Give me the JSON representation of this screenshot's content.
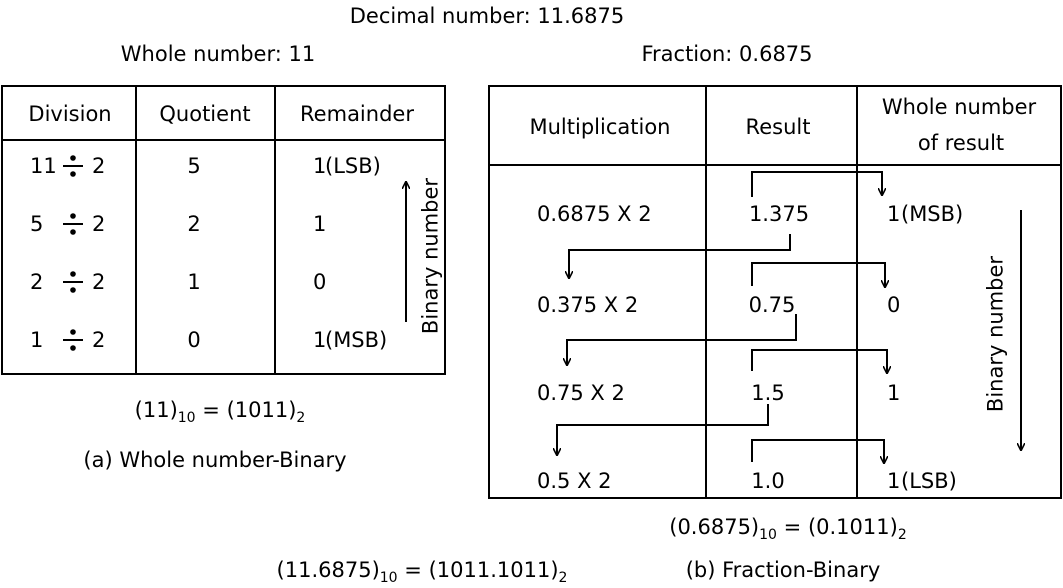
{
  "header": {
    "decimal_label": "Decimal number: 11.6875",
    "whole_label": "Whole number: 11",
    "fraction_label": "Fraction: 0.6875"
  },
  "table_a": {
    "headers": [
      "Division",
      "Quotient",
      "Remainder"
    ],
    "rows": [
      {
        "a": "11",
        "b": "2",
        "quotient": "5",
        "remainder": "1",
        "tag": "(LSB)"
      },
      {
        "a": "5",
        "b": "2",
        "quotient": "2",
        "remainder": "1",
        "tag": ""
      },
      {
        "a": "2",
        "b": "2",
        "quotient": "1",
        "remainder": "0",
        "tag": ""
      },
      {
        "a": "1",
        "b": "2",
        "quotient": "0",
        "remainder": "1",
        "tag": "(MSB)"
      }
    ],
    "side_label": "Binary number",
    "result": {
      "lhs": "(11)",
      "lhs_base": "10",
      "eq": "=",
      "rhs": "(1011)",
      "rhs_base": "2"
    },
    "caption": "(a) Whole number-Binary"
  },
  "table_b": {
    "headers": [
      "Multiplication",
      "Result",
      "Whole number",
      "of result"
    ],
    "rows": [
      {
        "mult": "0.6875 X 2",
        "result": "1.375",
        "whole": "1",
        "tag": "(MSB)"
      },
      {
        "mult": "0.375 X 2",
        "result": "0.75",
        "whole": "0",
        "tag": ""
      },
      {
        "mult": "0.75 X 2",
        "result": "1.5",
        "whole": "1",
        "tag": ""
      },
      {
        "mult": "0.5 X 2",
        "result": "1.0",
        "whole": "1",
        "tag": "(LSB)"
      }
    ],
    "side_label": "Binary number",
    "result": {
      "lhs": "(0.6875)",
      "lhs_base": "10",
      "eq": "=",
      "rhs": "(0.1011)",
      "rhs_base": "2"
    },
    "caption": "(b) Fraction-Binary"
  },
  "final": {
    "lhs": "(11.6875)",
    "lhs_base": "10",
    "eq": "=",
    "rhs": "(1011.1011)",
    "rhs_base": "2"
  }
}
